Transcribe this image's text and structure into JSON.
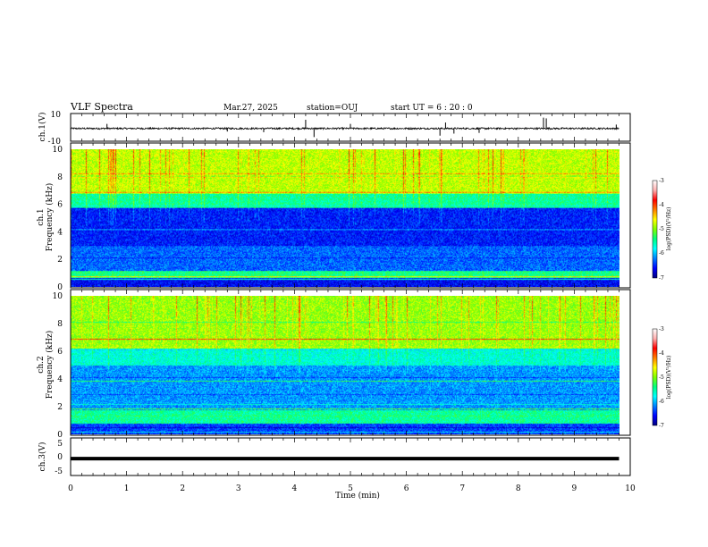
{
  "header": {
    "title": "VLF Spectra",
    "date": "Mar.27, 2025",
    "station": "station=OUJ",
    "start": "start  UT =   6 : 20 : 0"
  },
  "chart_data": [
    {
      "id": "ch1-waveform",
      "type": "line",
      "ylabel": "ch.1(V)",
      "ylim": [
        -10,
        10
      ],
      "yticks": [
        "10",
        "-10"
      ],
      "xlim": [
        0,
        10
      ],
      "baseline": -0.8,
      "noise_amplitude": 0.6,
      "spikes": [
        {
          "t": 0.65,
          "v": 2.5
        },
        {
          "t": 2.8,
          "v": -3.0
        },
        {
          "t": 3.45,
          "v": -3.5
        },
        {
          "t": 4.2,
          "v": 5.5
        },
        {
          "t": 4.35,
          "v": -7.0
        },
        {
          "t": 5.0,
          "v": 2.5
        },
        {
          "t": 6.6,
          "v": -6.0
        },
        {
          "t": 6.7,
          "v": 3.5
        },
        {
          "t": 6.85,
          "v": -4.5
        },
        {
          "t": 7.3,
          "v": -4.0
        },
        {
          "t": 8.45,
          "v": 7.0
        },
        {
          "t": 8.5,
          "v": 6.5
        },
        {
          "t": 9.75,
          "v": 2.0
        }
      ]
    },
    {
      "id": "ch1-spectrogram",
      "type": "heatmap",
      "ylabel": "ch.1\nFrequency (kHz)",
      "ylim": [
        0,
        10
      ],
      "yticks": [
        "0",
        "2",
        "4",
        "6",
        "8",
        "10"
      ],
      "xlim": [
        0,
        10
      ],
      "colorbar": {
        "label": "log(PSD)(V²/Hz)",
        "ticks": [
          "-3",
          "-4",
          "-5",
          "-6",
          "-7"
        ],
        "range": [
          -7,
          -3
        ]
      }
    },
    {
      "id": "ch2-spectrogram",
      "type": "heatmap",
      "ylabel": "ch.2\nFrequency (kHz)",
      "ylim": [
        0,
        10
      ],
      "yticks": [
        "0",
        "2",
        "4",
        "6",
        "8",
        "10"
      ],
      "xlim": [
        0,
        10
      ],
      "colorbar": {
        "label": "log(PSD)(V²/Hz)",
        "ticks": [
          "-3",
          "-4",
          "-5",
          "-6",
          "-7"
        ],
        "range": [
          -7,
          -3
        ]
      }
    },
    {
      "id": "ch3-waveform",
      "type": "line",
      "ylabel": "ch.3(V)",
      "ylim": [
        -5,
        5
      ],
      "yticks": [
        "5",
        "0",
        "-5"
      ],
      "xlim": [
        0,
        10
      ],
      "baseline": -0.5
    }
  ],
  "xaxis": {
    "label": "Time (min)",
    "ticks": [
      "0",
      "1",
      "2",
      "3",
      "4",
      "5",
      "6",
      "7",
      "8",
      "9",
      "10"
    ]
  },
  "colors": {
    "colormap": [
      "#00007f",
      "#0000ff",
      "#007fff",
      "#00ffff",
      "#00ff7f",
      "#7fff00",
      "#ffff00",
      "#ff7f00",
      "#ff0000",
      "#ffb0b0",
      "#ffffff"
    ]
  }
}
